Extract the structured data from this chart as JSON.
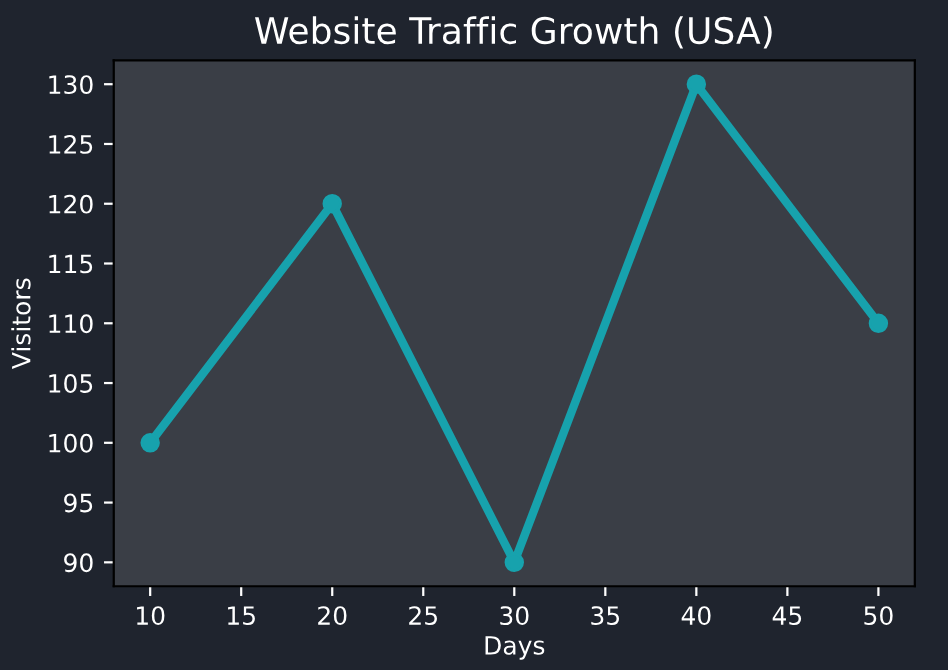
{
  "chart_data": {
    "type": "line",
    "title": "Website Traffic Growth (USA)",
    "xlabel": "Days",
    "ylabel": "Visitors",
    "x": [
      10,
      20,
      30,
      40,
      50
    ],
    "series": [
      {
        "color": "#17a2ad",
        "values": [
          100,
          120,
          90,
          130,
          110
        ]
      }
    ],
    "xlim": [
      8,
      52
    ],
    "xticks": [
      10,
      15,
      20,
      25,
      30,
      35,
      40,
      45,
      50
    ],
    "ylim": [
      88,
      132
    ],
    "yticks": [
      90,
      95,
      100,
      105,
      110,
      115,
      120,
      125,
      130
    ],
    "marker": "circle",
    "line_style": "solid",
    "grid": false,
    "legend": false
  }
}
